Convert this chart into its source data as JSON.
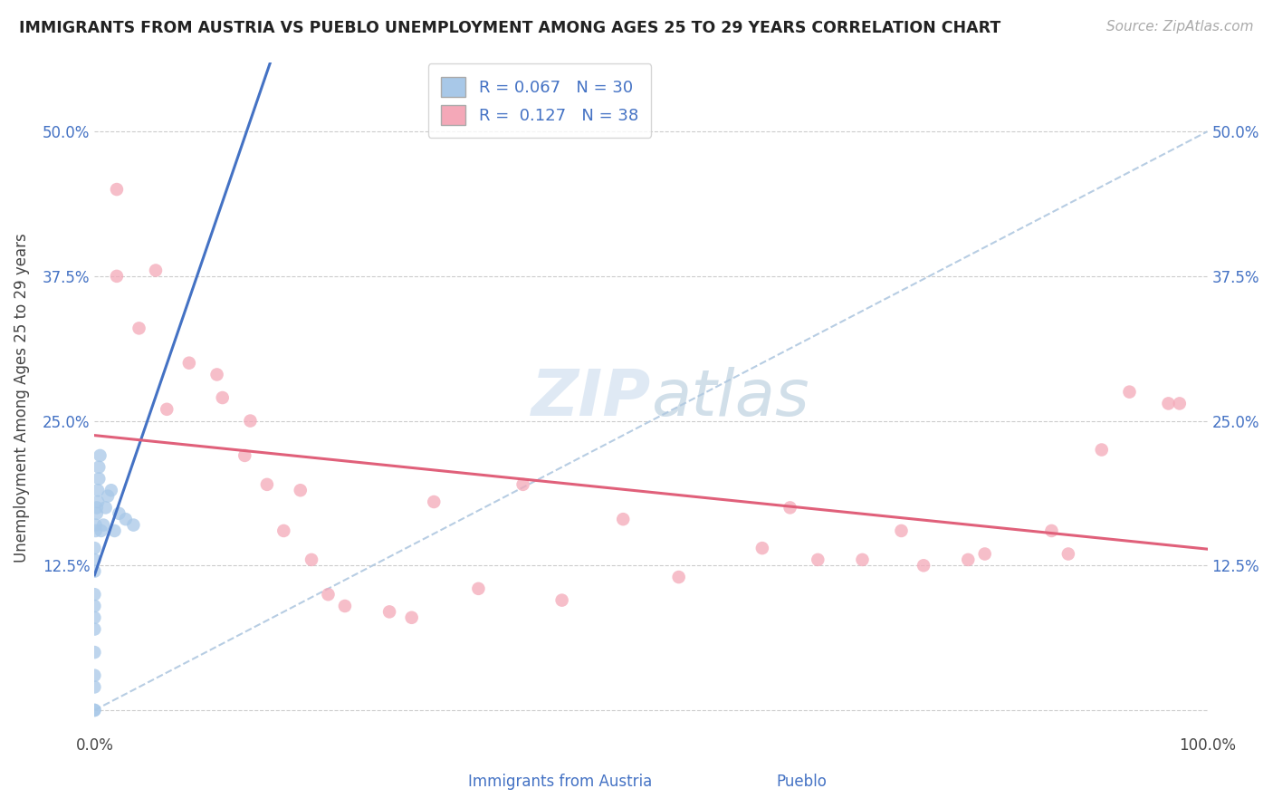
{
  "title": "IMMIGRANTS FROM AUSTRIA VS PUEBLO UNEMPLOYMENT AMONG AGES 25 TO 29 YEARS CORRELATION CHART",
  "source": "Source: ZipAtlas.com",
  "ylabel": "Unemployment Among Ages 25 to 29 years",
  "legend_label1": "R = 0.067   N = 30",
  "legend_label2": "R =  0.127   N = 38",
  "color_austria": "#a8c8e8",
  "color_pueblo": "#f4a8b8",
  "trendline_color_austria": "#4472c4",
  "trendline_color_pueblo": "#e0607a",
  "background_color": "#ffffff",
  "bottom_legend1": "Immigrants from Austria",
  "bottom_legend2": "Pueblo",
  "austria_x": [
    0.0,
    0.0,
    0.0,
    0.0,
    0.0,
    0.0,
    0.0,
    0.0,
    0.0,
    0.0,
    0.0,
    0.0,
    0.001,
    0.001,
    0.002,
    0.002,
    0.003,
    0.003,
    0.004,
    0.004,
    0.005,
    0.006,
    0.008,
    0.01,
    0.012,
    0.015,
    0.018,
    0.022,
    0.028,
    0.035
  ],
  "austria_y": [
    0.0,
    0.0,
    0.02,
    0.03,
    0.05,
    0.07,
    0.08,
    0.09,
    0.1,
    0.12,
    0.13,
    0.14,
    0.155,
    0.16,
    0.17,
    0.175,
    0.18,
    0.19,
    0.2,
    0.21,
    0.22,
    0.155,
    0.16,
    0.175,
    0.185,
    0.19,
    0.155,
    0.17,
    0.165,
    0.16
  ],
  "pueblo_x": [
    0.02,
    0.02,
    0.04,
    0.055,
    0.065,
    0.085,
    0.11,
    0.115,
    0.135,
    0.14,
    0.155,
    0.17,
    0.185,
    0.195,
    0.21,
    0.225,
    0.265,
    0.285,
    0.305,
    0.345,
    0.385,
    0.42,
    0.475,
    0.525,
    0.6,
    0.625,
    0.65,
    0.69,
    0.725,
    0.745,
    0.785,
    0.8,
    0.86,
    0.875,
    0.905,
    0.93,
    0.965,
    0.975
  ],
  "pueblo_y": [
    0.45,
    0.375,
    0.33,
    0.38,
    0.26,
    0.3,
    0.29,
    0.27,
    0.22,
    0.25,
    0.195,
    0.155,
    0.19,
    0.13,
    0.1,
    0.09,
    0.085,
    0.08,
    0.18,
    0.105,
    0.195,
    0.095,
    0.165,
    0.115,
    0.14,
    0.175,
    0.13,
    0.13,
    0.155,
    0.125,
    0.13,
    0.135,
    0.155,
    0.135,
    0.225,
    0.275,
    0.265,
    0.265
  ],
  "ytick_values": [
    0.0,
    0.125,
    0.25,
    0.375,
    0.5
  ],
  "ytick_labels": [
    "",
    "12.5%",
    "25.0%",
    "37.5%",
    "50.0%"
  ],
  "xlim": [
    0.0,
    1.0
  ],
  "ylim": [
    -0.02,
    0.56
  ]
}
